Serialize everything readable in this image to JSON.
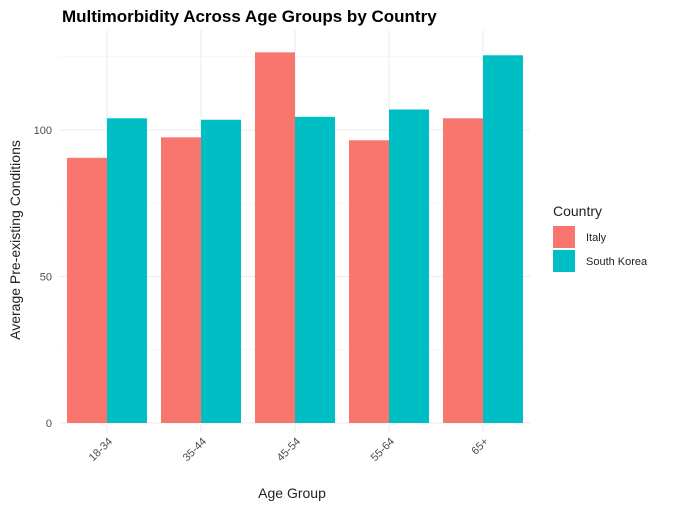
{
  "chart_data": {
    "type": "bar",
    "title": "Multimorbidity Across Age Groups by Country",
    "xlabel": "Age Group",
    "ylabel": "Average Pre-existing Conditions",
    "categories": [
      "18-34",
      "35-44",
      "45-54",
      "55-64",
      "65+"
    ],
    "series": [
      {
        "name": "Italy",
        "color": "#F8766D",
        "values": [
          90.5,
          97.5,
          126.5,
          96.5,
          104
        ]
      },
      {
        "name": "South Korea",
        "color": "#00BFC4",
        "values": [
          104,
          103.5,
          104.5,
          107,
          125.5
        ]
      }
    ],
    "ylim": [
      0,
      132
    ],
    "yticks": [
      0,
      50,
      100
    ],
    "grid": true,
    "legend": {
      "title": "Country",
      "position": "right"
    }
  }
}
